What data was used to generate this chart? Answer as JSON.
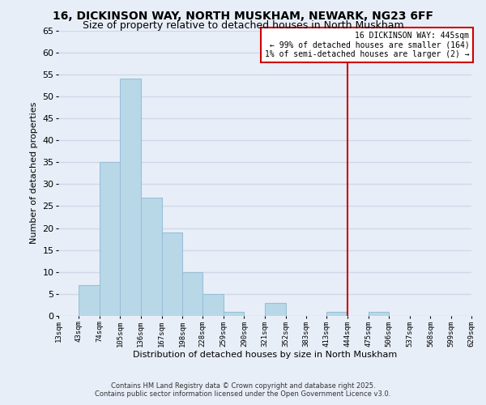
{
  "title": "16, DICKINSON WAY, NORTH MUSKHAM, NEWARK, NG23 6FF",
  "subtitle": "Size of property relative to detached houses in North Muskham",
  "xlabel": "Distribution of detached houses by size in North Muskham",
  "ylabel": "Number of detached properties",
  "bin_edges": [
    13,
    43,
    74,
    105,
    136,
    167,
    198,
    228,
    259,
    290,
    321,
    352,
    383,
    413,
    444,
    475,
    506,
    537,
    568,
    599,
    629
  ],
  "counts": [
    0,
    7,
    35,
    54,
    27,
    19,
    10,
    5,
    1,
    0,
    3,
    0,
    0,
    1,
    0,
    1,
    0,
    0,
    0,
    0
  ],
  "bar_color": "#b8d8e8",
  "bar_edgecolor": "#99c0d8",
  "vline_x": 444,
  "vline_color": "#cc0000",
  "ylim": [
    0,
    65
  ],
  "yticks": [
    0,
    5,
    10,
    15,
    20,
    25,
    30,
    35,
    40,
    45,
    50,
    55,
    60,
    65
  ],
  "xtick_labels": [
    "13sqm",
    "43sqm",
    "74sqm",
    "105sqm",
    "136sqm",
    "167sqm",
    "198sqm",
    "228sqm",
    "259sqm",
    "290sqm",
    "321sqm",
    "352sqm",
    "383sqm",
    "413sqm",
    "444sqm",
    "475sqm",
    "506sqm",
    "537sqm",
    "568sqm",
    "599sqm",
    "629sqm"
  ],
  "annotation_title": "16 DICKINSON WAY: 445sqm",
  "annotation_line1": "← 99% of detached houses are smaller (164)",
  "annotation_line2": "1% of semi-detached houses are larger (2) →",
  "footer1": "Contains HM Land Registry data © Crown copyright and database right 2025.",
  "footer2": "Contains public sector information licensed under the Open Government Licence v3.0.",
  "background_color": "#e8eef8",
  "grid_color": "#d0d8e8",
  "title_fontsize": 10,
  "subtitle_fontsize": 9
}
